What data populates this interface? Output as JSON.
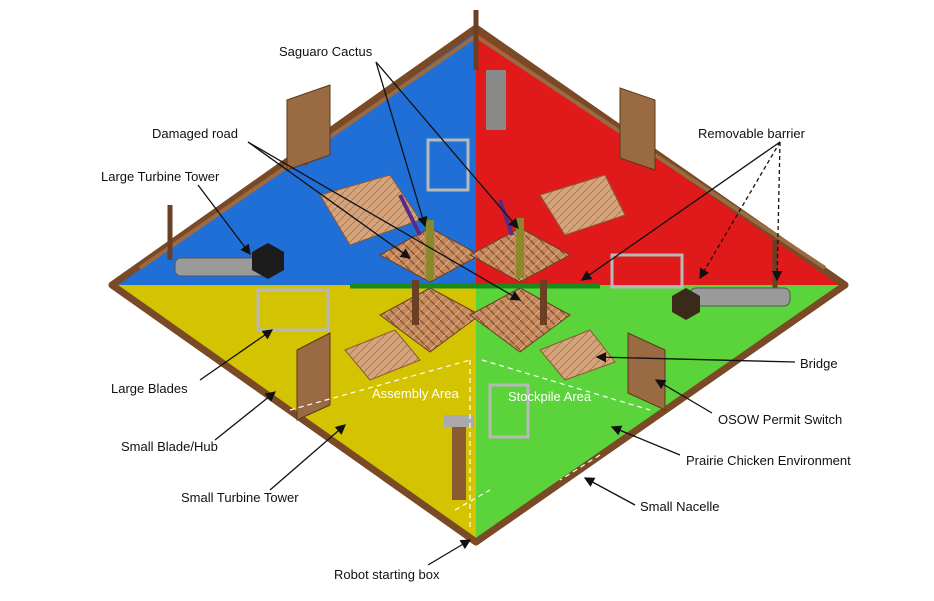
{
  "labels": {
    "saguaro_cactus": "Saguaro Cactus",
    "damaged_road": "Damaged road",
    "large_turbine_tower": "Large Turbine Tower",
    "removable_barrier": "Removable barrier",
    "large_blades": "Large Blades",
    "small_blade_hub": "Small Blade/Hub",
    "small_turbine_tower": "Small Turbine Tower",
    "robot_starting_box": "Robot starting box",
    "bridge": "Bridge",
    "osow_permit_switch": "OSOW Permit Switch",
    "prairie_chicken_environment": "Prairie Chicken Environment",
    "small_nacelle": "Small Nacelle",
    "assembly_area": "Assembly Area",
    "stockpile_area": "Stockpile Area"
  },
  "colors": {
    "blue_quadrant": "#1f6fd6",
    "red_quadrant": "#e01a1a",
    "yellow_quadrant": "#d4c300",
    "green_quadrant": "#5ad43a",
    "border": "#7a4a26",
    "wood": "#a0603a",
    "tile": "#c48a5e"
  }
}
